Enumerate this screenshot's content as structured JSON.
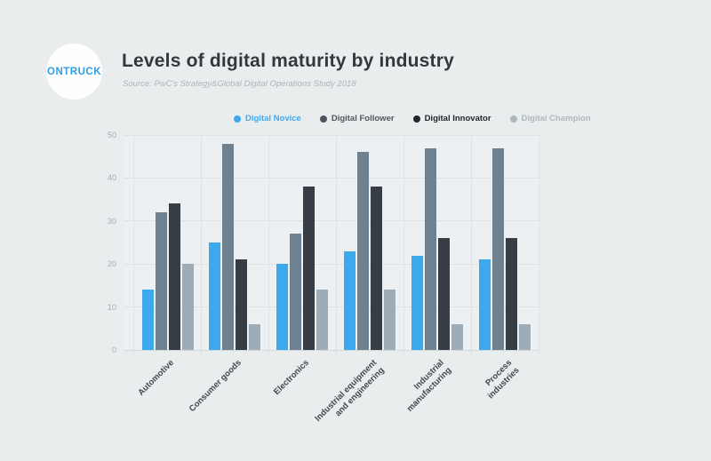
{
  "page": {
    "background": "#E9EDEE"
  },
  "logo": {
    "text": "ONTRUCK",
    "color": "#2D9FE8"
  },
  "header": {
    "title": "Levels of digital maturity by industry",
    "subtitle": "Source: PwC's Strategy&Global Digital Operations Study 2018"
  },
  "legend": {
    "position": "top",
    "items": [
      {
        "label": "Digital Novice",
        "color": "#3FA9F0"
      },
      {
        "label": "Digital Follower",
        "color": "#4D565E"
      },
      {
        "label": "Digital Innovator",
        "color": "#21262B"
      },
      {
        "label": "Digital Champion",
        "color": "#AEB8BF"
      }
    ]
  },
  "chart_data": {
    "type": "bar",
    "title": "Levels of digital maturity by industry",
    "categories": [
      "Automotive",
      "Consumer goods",
      "Electronics",
      "Industrial equipment\nand engineering",
      "Industrial\nmanufacturing",
      "Process\nindustries"
    ],
    "series": [
      {
        "name": "Digital Novice",
        "color": "#3BA9EC",
        "values": [
          14,
          25,
          20,
          23,
          22,
          21
        ]
      },
      {
        "name": "Digital Follower",
        "color": "#6E8190",
        "values": [
          32,
          48,
          27,
          46,
          47,
          47
        ]
      },
      {
        "name": "Digital Innovator",
        "color": "#363D44",
        "values": [
          34,
          21,
          38,
          38,
          26,
          26
        ]
      },
      {
        "name": "Digital Champion",
        "color": "#9DACB6",
        "values": [
          20,
          6,
          14,
          14,
          6,
          6
        ]
      }
    ],
    "xlabel": "",
    "ylabel": "",
    "ylim": [
      0,
      50
    ],
    "yticks": [
      0,
      10,
      20,
      30,
      40,
      50
    ],
    "grid": true,
    "legend_position": "top"
  }
}
